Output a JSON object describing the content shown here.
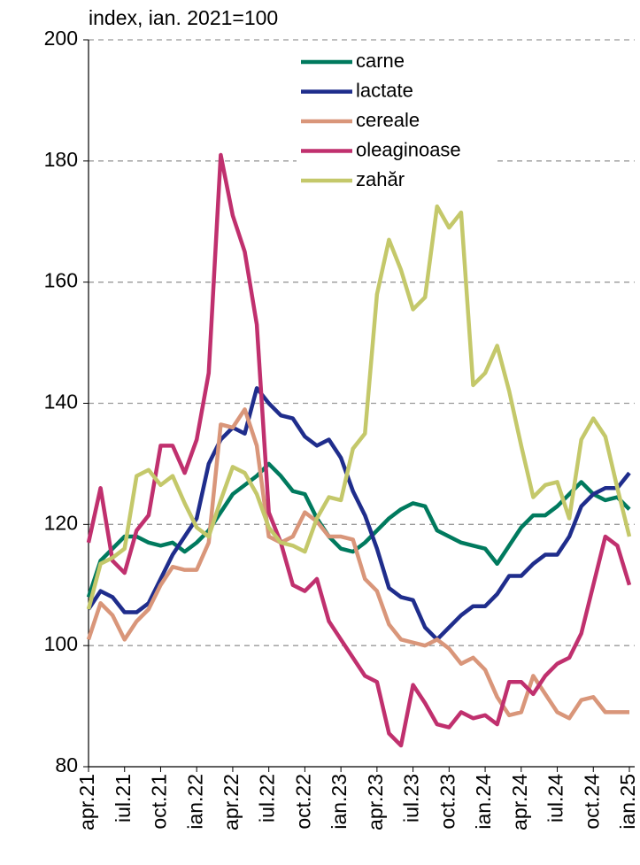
{
  "chart_data": {
    "type": "line",
    "title": "index, ian. 2021=100",
    "categories": [
      "apr.21",
      null,
      null,
      "iul.21",
      null,
      null,
      "oct.21",
      null,
      null,
      "ian.22",
      null,
      null,
      "apr.22",
      null,
      null,
      "iul.22",
      null,
      null,
      "oct.22",
      null,
      null,
      "ian.23",
      null,
      null,
      "apr.23",
      null,
      null,
      "iul.23",
      null,
      null,
      "oct.23",
      null,
      null,
      "ian.24",
      null,
      null,
      "apr.24",
      null,
      null,
      "iul.24",
      null,
      null,
      "oct.24",
      null,
      null,
      "ian.25"
    ],
    "ylim": [
      80,
      200
    ],
    "yticks": [
      80,
      100,
      120,
      140,
      160,
      180,
      200
    ],
    "grid": true,
    "series": [
      {
        "name": "carne",
        "color": "#007a5e",
        "values": [
          108,
          114,
          116,
          118,
          118,
          117,
          116.5,
          117,
          115.5,
          117,
          119,
          122,
          125,
          126.5,
          128,
          130,
          128,
          125.5,
          125,
          121,
          118,
          116,
          115.5,
          117,
          119,
          121,
          122.5,
          123.5,
          123,
          119,
          118,
          117,
          116.5,
          116,
          113.5,
          116.5,
          119.5,
          121.5,
          121.5,
          123,
          125,
          127,
          125,
          124,
          124.5,
          122.5
        ]
      },
      {
        "name": "lactate",
        "color": "#1f2d8c",
        "values": [
          106,
          109,
          108,
          105.5,
          105.5,
          107,
          111,
          115,
          118,
          121,
          130,
          134,
          136,
          135,
          142.5,
          140,
          138,
          137.5,
          134.5,
          133,
          134,
          131,
          125.5,
          121.5,
          116,
          109.5,
          108,
          107.5,
          103,
          101,
          103,
          105,
          106.5,
          106.5,
          108.5,
          111.5,
          111.5,
          113.5,
          115,
          115,
          118,
          123,
          125,
          126,
          126,
          128.5
        ]
      },
      {
        "name": "cereale",
        "color": "#d9967a",
        "values": [
          101,
          107,
          105,
          101,
          104,
          106,
          110,
          113,
          112.5,
          112.5,
          117,
          136.5,
          136,
          139,
          133,
          118,
          117,
          118,
          122,
          120.5,
          118,
          118,
          117.5,
          111,
          109,
          103.5,
          101,
          100.5,
          100,
          101,
          99.5,
          97,
          98,
          96,
          91.5,
          88.5,
          89,
          95,
          92,
          89,
          88,
          91,
          91.5,
          89,
          89,
          89
        ]
      },
      {
        "name": "oleaginoase",
        "color": "#c0306e",
        "values": [
          117,
          126,
          114,
          112,
          119,
          121.5,
          133,
          133,
          128.5,
          134,
          145,
          181,
          171,
          165,
          153,
          122,
          117,
          110,
          109,
          111,
          104,
          101,
          98,
          95,
          94,
          85.5,
          83.5,
          93.5,
          90.5,
          87,
          86.5,
          89,
          88,
          88.5,
          87,
          94,
          94,
          92,
          95,
          97,
          98,
          102,
          110,
          118,
          116.5,
          110
        ]
      },
      {
        "name": "zahăr",
        "color": "#c4c86a",
        "values": [
          106,
          113.5,
          114.5,
          116,
          128,
          129,
          126.5,
          128,
          123.5,
          119.5,
          118,
          124,
          129.5,
          128.5,
          125,
          119.5,
          117,
          116.5,
          115.5,
          121,
          124.5,
          124,
          132.5,
          135,
          158,
          167,
          162,
          155.5,
          157.5,
          172.5,
          169,
          171.5,
          143,
          145,
          149.5,
          142,
          133,
          124.5,
          126.5,
          127,
          121,
          134,
          137.5,
          134.5,
          126,
          118
        ]
      }
    ]
  }
}
